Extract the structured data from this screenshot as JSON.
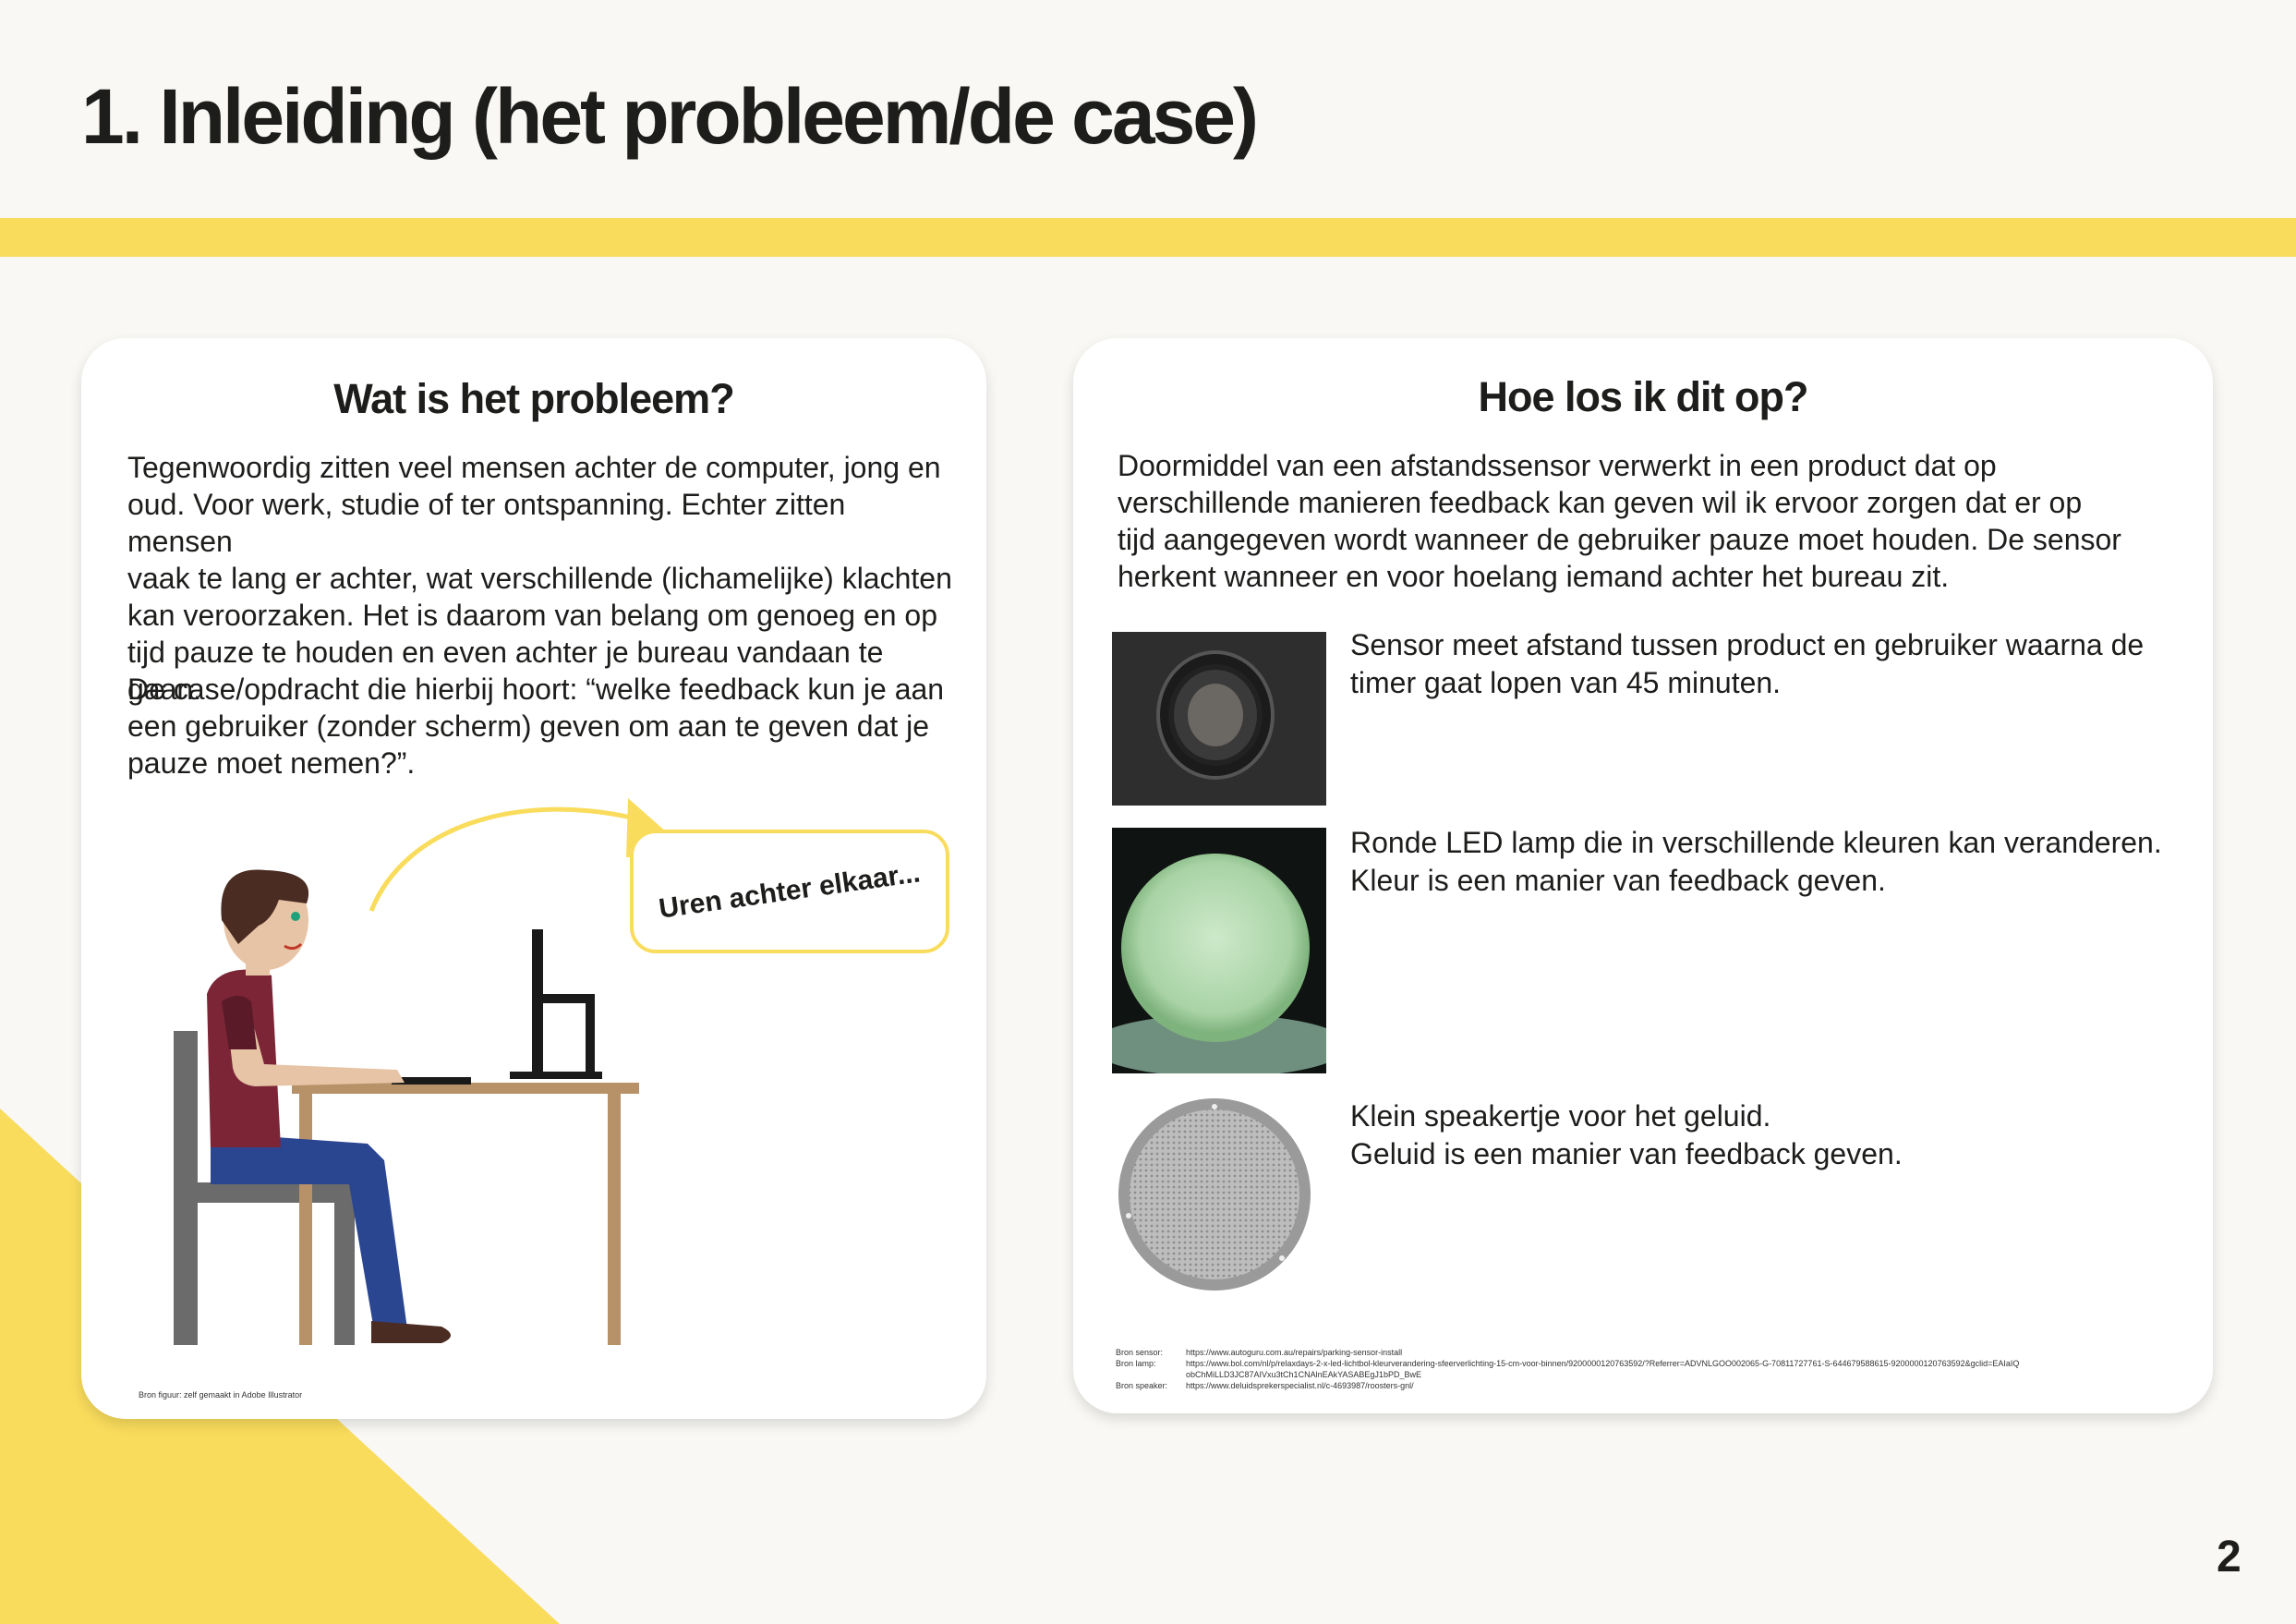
{
  "page": {
    "title": "1. Inleiding (het probleem/de case)",
    "page_number": "2",
    "colors": {
      "accent": "#f9dc5c",
      "background": "#f9f8f5",
      "card": "#ffffff",
      "text": "#1d1d1b"
    }
  },
  "left_card": {
    "heading": "Wat is het probleem?",
    "paragraph1_lines": [
      "Tegenwoordig zitten veel mensen achter de computer, jong en",
      "oud. Voor werk, studie of ter ontspanning. Echter zitten mensen",
      "vaak te lang er achter, wat verschillende (lichamelijke) klachten",
      "kan veroorzaken. Het is daarom van belang om genoeg en op",
      "tijd pauze te houden en even achter je bureau vandaan te gaan."
    ],
    "paragraph2_lines": [
      "De case/opdracht die hierbij hoort: “welke feedback kun je aan",
      "een gebruiker (zonder scherm) geven om aan te geven dat je",
      "pauze moet nemen?”."
    ],
    "bubble_text": "Uren achter elkaar...",
    "illustration_icon": "person-at-desk-illustration",
    "source": "Bron figuur: zelf gemaakt in Adobe Illustrator"
  },
  "right_card": {
    "heading": "Hoe los ik dit op?",
    "intro_lines": [
      "Doormiddel van een afstandssensor verwerkt in een product dat op",
      "verschillende manieren feedback kan geven wil ik ervoor zorgen dat er op",
      "tijd aangegeven wordt wanneer de gebruiker pauze moet houden. De sensor",
      "herkent wanneer en voor hoelang iemand achter het bureau zit."
    ],
    "features": [
      {
        "icon": "distance-sensor-photo",
        "lines": [
          "Sensor meet afstand tussen product en gebruiker waarna de",
          "timer gaat lopen van 45 minuten."
        ]
      },
      {
        "icon": "round-led-lamp-photo",
        "lines": [
          "Ronde LED lamp die in verschillende kleuren kan veranderen.",
          "Kleur is een manier van feedback geven."
        ]
      },
      {
        "icon": "speaker-grille-photo",
        "lines": [
          "Klein speakertje voor het geluid.",
          "Geluid is een manier van feedback geven."
        ]
      }
    ],
    "sources": [
      {
        "label": "Bron sensor:",
        "url": "https://www.autoguru.com.au/repairs/parking-sensor-install"
      },
      {
        "label": "Bron lamp:",
        "url": "https://www.bol.com/nl/p/relaxdays-2-x-led-lichtbol-kleurverandering-sfeerverlichting-15-cm-voor-binnen/9200000120763592/?Referrer=ADVNLGOO002065-G-70811727761-S-644679588615-9200000120763592&gclid=EAIaIQ"
      },
      {
        "label": "",
        "url": "obChMiLLD3JC87AIVxu3tCh1CNAlnEAkYASABEgJ1bPD_BwE"
      },
      {
        "label": "Bron speaker:",
        "url": "https://www.deluidsprekerspecialist.nl/c-4693987/roosters-gnl/"
      }
    ]
  }
}
